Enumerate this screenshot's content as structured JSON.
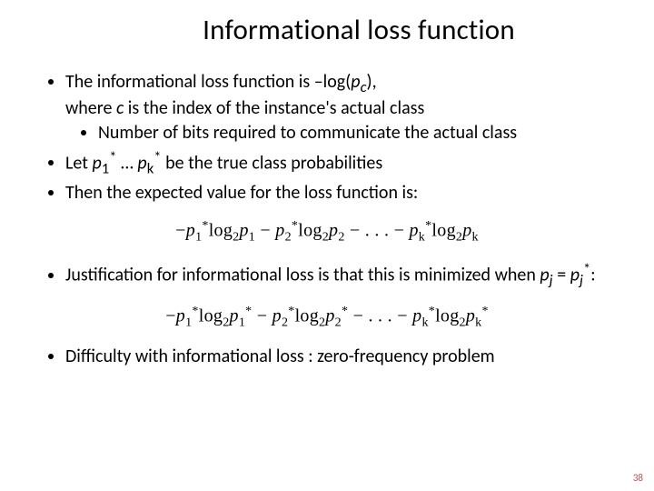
{
  "title": "Informational loss function",
  "bullets": {
    "b1_pre": "The informational loss function is –log(",
    "b1_var": "p",
    "b1_sub": "c",
    "b1_post": "),",
    "b1_line2_pre": "where ",
    "b1_line2_var": "c",
    "b1_line2_post": " is the index of the instance's actual class",
    "b1_sub1": "Number of bits required to communicate the actual class",
    "b2_pre": "Let ",
    "b2_p1": "p",
    "b2_1": "1",
    "b2_star": "*",
    "b2_dots": " … ",
    "b2_pk": "p",
    "b2_k": "k",
    "b2_post": " be the true class probabilities",
    "b3": "Then the expected value for the loss function is:",
    "b4_pre": "Justification for informational loss is that this is minimized when ",
    "b4_pj": "p",
    "b4_j": "j",
    "b4_eq": " = ",
    "b4_pj2": "p",
    "b4_j2": "j",
    "b4_post": ":",
    "b5": "Difficulty with informational loss : zero-frequency problem"
  },
  "formula1": "−p₁*log₂p₁ − p₂*log₂p₂ − . . . − pₖ*log₂pₖ",
  "formula2": "−p₁*log₂p₁* − p₂*log₂p₂* − . . . − pₖ*log₂pₖ*",
  "pagenum": "38",
  "colors": {
    "pagenum": "#c0504d",
    "bg": "#ffffff",
    "text": "#000000"
  }
}
